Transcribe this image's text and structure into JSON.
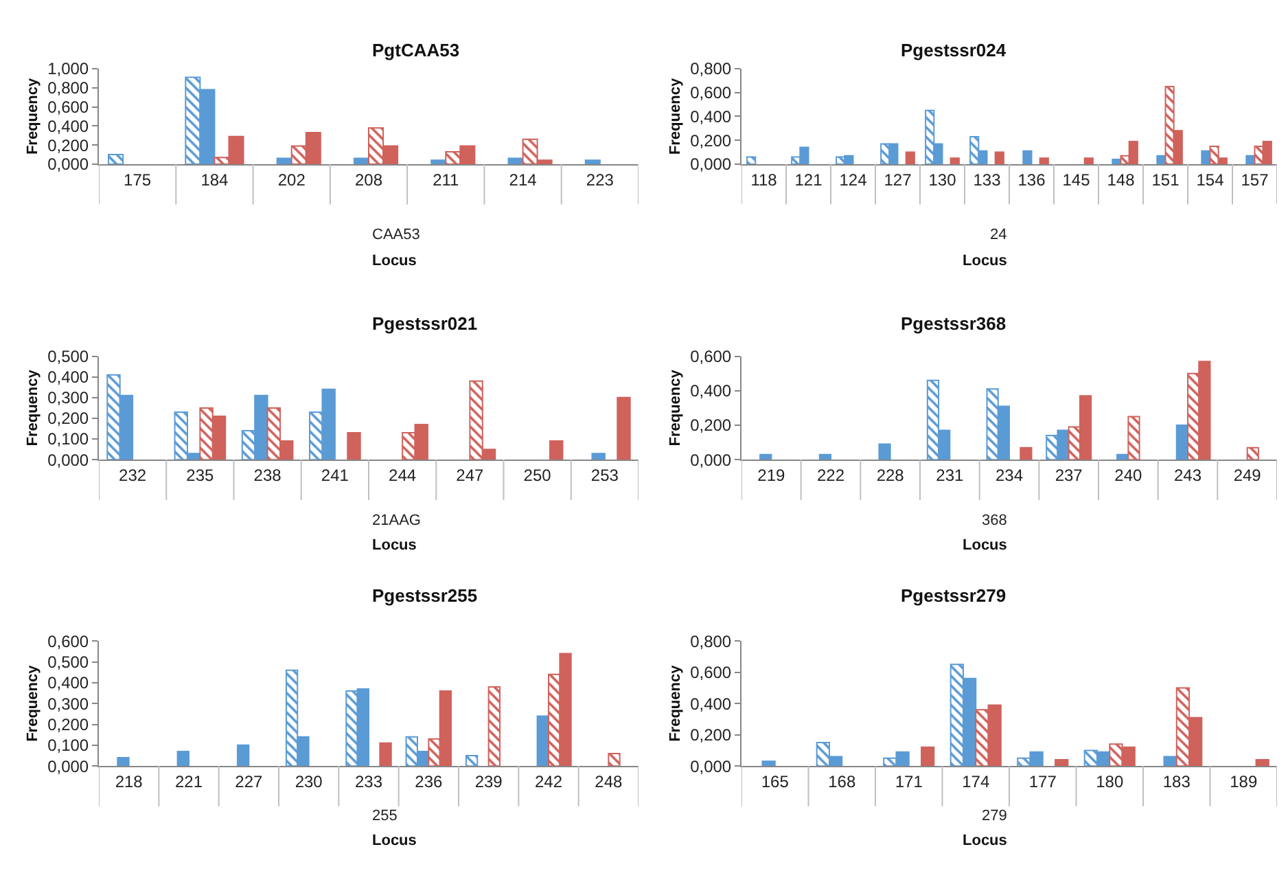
{
  "chart_data": [
    {
      "type": "bar",
      "title": "PgtCAA53",
      "xlabel": "Locus",
      "ylabel": "Frequency",
      "annotations": [
        "CAA53"
      ],
      "categories": [
        "175",
        "184",
        "202",
        "208",
        "211",
        "214",
        "223"
      ],
      "series": [
        {
          "color": "#5b9bd5",
          "values": [
            0.1,
            0.91,
            null,
            null,
            null,
            null,
            null
          ]
        },
        {
          "color": "#5b9bd5",
          "values": [
            null,
            0.78,
            0.06,
            0.06,
            0.04,
            0.06,
            0.04
          ]
        },
        {
          "color": "#d0625c",
          "values": [
            null,
            0.07,
            0.19,
            0.38,
            0.13,
            0.26,
            null
          ]
        },
        {
          "color": "#d0625c",
          "values": [
            null,
            0.29,
            0.33,
            0.19,
            0.19,
            0.04,
            null
          ]
        }
      ],
      "ylim": [
        0,
        1
      ],
      "yticks": [
        {
          "value": 0,
          "label": "0,000"
        },
        {
          "value": 0.2,
          "label": "0,200"
        },
        {
          "value": 0.4,
          "label": "0,400"
        },
        {
          "value": 0.6,
          "label": "0,600"
        },
        {
          "value": 0.8,
          "label": "0,800"
        },
        {
          "value": 1,
          "label": "1,000"
        }
      ]
    },
    {
      "type": "bar",
      "title": "Pgestssr024",
      "xlabel": "Locus",
      "ylabel": "Frequency",
      "annotations": [
        "24"
      ],
      "categories": [
        "118",
        "121",
        "124",
        "127",
        "130",
        "133",
        "136",
        "145",
        "148",
        "151",
        "154",
        "157"
      ],
      "series": [
        {
          "color": "#5b9bd5",
          "values": [
            0.06,
            0.06,
            0.06,
            0.17,
            0.45,
            0.23,
            null,
            null,
            null,
            null,
            null,
            null
          ]
        },
        {
          "color": "#5b9bd5",
          "values": [
            null,
            0.14,
            0.07,
            0.17,
            0.17,
            0.11,
            0.11,
            null,
            0.04,
            0.07,
            0.11,
            0.07
          ]
        },
        {
          "color": "#d0625c",
          "values": [
            null,
            null,
            null,
            null,
            null,
            null,
            null,
            null,
            0.07,
            0.65,
            0.15,
            0.15
          ]
        },
        {
          "color": "#d0625c",
          "values": [
            null,
            null,
            null,
            0.1,
            0.05,
            0.1,
            0.05,
            0.05,
            0.19,
            0.28,
            0.05,
            0.19
          ]
        }
      ],
      "ylim": [
        0,
        0.8
      ],
      "yticks": [
        {
          "value": 0,
          "label": "0,000"
        },
        {
          "value": 0.2,
          "label": "0,200"
        },
        {
          "value": 0.4,
          "label": "0,400"
        },
        {
          "value": 0.6,
          "label": "0,600"
        },
        {
          "value": 0.8,
          "label": "0,800"
        }
      ]
    },
    {
      "type": "bar",
      "title": "Pgestssr021",
      "xlabel": "Locus",
      "ylabel": "Frequency",
      "annotations": [
        "21AAG"
      ],
      "categories": [
        "232",
        "235",
        "238",
        "241",
        "244",
        "247",
        "250",
        "253"
      ],
      "series": [
        {
          "color": "#5b9bd5",
          "values": [
            0.41,
            0.23,
            0.14,
            0.23,
            null,
            null,
            null,
            null
          ]
        },
        {
          "color": "#5b9bd5",
          "values": [
            0.31,
            0.03,
            0.31,
            0.34,
            null,
            null,
            null,
            0.03
          ]
        },
        {
          "color": "#d0625c",
          "values": [
            null,
            0.25,
            0.25,
            null,
            0.13,
            0.38,
            null,
            null
          ]
        },
        {
          "color": "#d0625c",
          "values": [
            null,
            0.21,
            0.09,
            0.13,
            0.17,
            0.05,
            0.09,
            0.3
          ]
        }
      ],
      "ylim": [
        0,
        0.5
      ],
      "yticks": [
        {
          "value": 0,
          "label": "0,000"
        },
        {
          "value": 0.1,
          "label": "0,100"
        },
        {
          "value": 0.2,
          "label": "0,200"
        },
        {
          "value": 0.3,
          "label": "0,300"
        },
        {
          "value": 0.4,
          "label": "0,400"
        },
        {
          "value": 0.5,
          "label": "0,500"
        }
      ]
    },
    {
      "type": "bar",
      "title": "Pgestssr368",
      "xlabel": "Locus",
      "ylabel": "Frequency",
      "annotations": [
        "368"
      ],
      "categories": [
        "219",
        "222",
        "228",
        "231",
        "234",
        "237",
        "240",
        "243",
        "249"
      ],
      "series": [
        {
          "color": "#5b9bd5",
          "values": [
            null,
            null,
            null,
            0.46,
            0.41,
            0.14,
            null,
            null,
            null
          ]
        },
        {
          "color": "#5b9bd5",
          "values": [
            0.03,
            0.03,
            0.09,
            0.17,
            0.31,
            0.17,
            0.03,
            0.2,
            null
          ]
        },
        {
          "color": "#d0625c",
          "values": [
            null,
            null,
            null,
            null,
            null,
            0.19,
            0.25,
            0.5,
            0.07
          ]
        },
        {
          "color": "#d0625c",
          "values": [
            null,
            null,
            null,
            null,
            0.07,
            0.37,
            null,
            0.57,
            null
          ]
        }
      ],
      "ylim": [
        0,
        0.6
      ],
      "yticks": [
        {
          "value": 0,
          "label": "0,000"
        },
        {
          "value": 0.2,
          "label": "0,200"
        },
        {
          "value": 0.4,
          "label": "0,400"
        },
        {
          "value": 0.6,
          "label": "0,600"
        }
      ]
    },
    {
      "type": "bar",
      "title": "Pgestssr255",
      "xlabel": "Locus",
      "ylabel": "Frequency",
      "annotations": [
        "255"
      ],
      "categories": [
        "218",
        "221",
        "227",
        "230",
        "233",
        "236",
        "239",
        "242",
        "248"
      ],
      "series": [
        {
          "color": "#5b9bd5",
          "values": [
            null,
            null,
            null,
            0.46,
            0.36,
            0.14,
            0.05,
            null,
            null
          ]
        },
        {
          "color": "#5b9bd5",
          "values": [
            0.04,
            0.07,
            0.1,
            0.14,
            0.37,
            0.07,
            null,
            0.24,
            null
          ]
        },
        {
          "color": "#d0625c",
          "values": [
            null,
            null,
            null,
            null,
            null,
            0.13,
            0.38,
            0.44,
            0.06
          ]
        },
        {
          "color": "#d0625c",
          "values": [
            null,
            null,
            null,
            null,
            0.11,
            0.36,
            null,
            0.54,
            null
          ]
        }
      ],
      "ylim": [
        0,
        0.6
      ],
      "yticks": [
        {
          "value": 0,
          "label": "0,000"
        },
        {
          "value": 0.1,
          "label": "0,100"
        },
        {
          "value": 0.2,
          "label": "0,200"
        },
        {
          "value": 0.3,
          "label": "0,300"
        },
        {
          "value": 0.4,
          "label": "0,400"
        },
        {
          "value": 0.5,
          "label": "0,500"
        },
        {
          "value": 0.6,
          "label": "0,600"
        }
      ]
    },
    {
      "type": "bar",
      "title": "Pgestssr279",
      "xlabel": "Locus",
      "ylabel": "Frequency",
      "annotations": [
        "279"
      ],
      "categories": [
        "165",
        "168",
        "171",
        "174",
        "177",
        "180",
        "183",
        "189"
      ],
      "series": [
        {
          "color": "#5b9bd5",
          "values": [
            null,
            0.15,
            0.05,
            0.65,
            0.05,
            0.1,
            null,
            null
          ]
        },
        {
          "color": "#5b9bd5",
          "values": [
            0.03,
            0.06,
            0.09,
            0.56,
            0.09,
            0.09,
            0.06,
            null
          ]
        },
        {
          "color": "#d0625c",
          "values": [
            null,
            null,
            null,
            0.36,
            null,
            0.14,
            0.5,
            null
          ]
        },
        {
          "color": "#d0625c",
          "values": [
            null,
            null,
            0.12,
            0.39,
            0.04,
            0.12,
            0.31,
            0.04
          ]
        }
      ],
      "ylim": [
        0,
        0.8
      ],
      "yticks": [
        {
          "value": 0,
          "label": "0,000"
        },
        {
          "value": 0.2,
          "label": "0,200"
        },
        {
          "value": 0.4,
          "label": "0,400"
        },
        {
          "value": 0.6,
          "label": "0,600"
        },
        {
          "value": 0.8,
          "label": "0,800"
        }
      ]
    }
  ]
}
